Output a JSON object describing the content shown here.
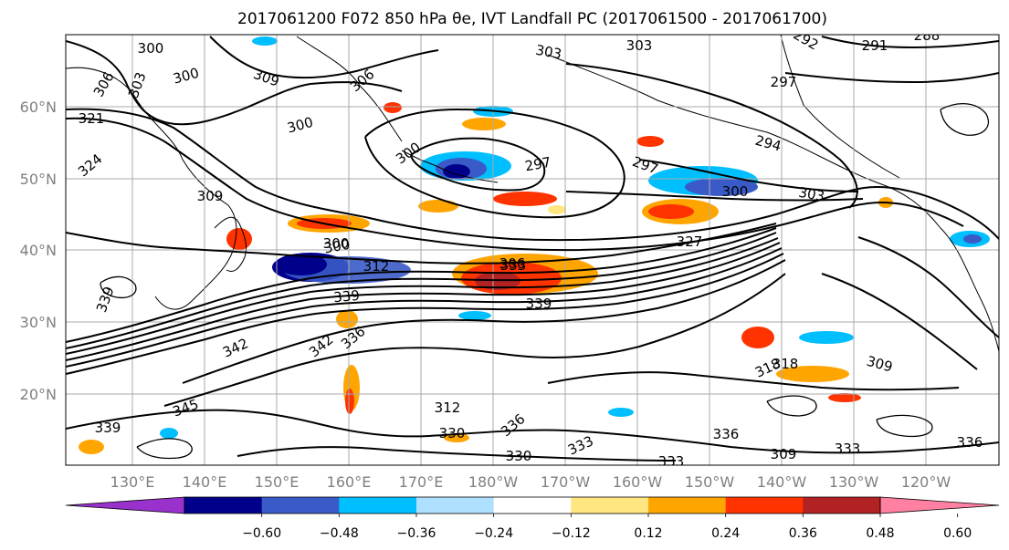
{
  "title": "2017061200 F072 850 hPa θe, IVT Landfall PC (2017061500 - 2017061700)",
  "lat_labels": [
    "60°N",
    "50°N",
    "40°N",
    "30°N",
    "20°N"
  ],
  "lon_labels": [
    "130°E",
    "140°E",
    "150°E",
    "160°E",
    "170°E",
    "180°W",
    "170°W",
    "160°W",
    "150°W",
    "140°W",
    "130°W",
    "120°W"
  ],
  "colorbar": {
    "colors": [
      "#9932cc",
      "#00008b",
      "#3a5bc7",
      "#00bfff",
      "#b0e0ff",
      "#ffffff",
      "#ffe680",
      "#ffa500",
      "#ff3300",
      "#b22222",
      "#ff80a0"
    ],
    "tick_labels": [
      "−0.60",
      "−0.48",
      "−0.36",
      "−0.24",
      "−0.12",
      "0.12",
      "0.24",
      "0.36",
      "0.48",
      "0.60"
    ]
  },
  "contour_labels": [
    "300",
    "306",
    "303",
    "300",
    "309",
    "306",
    "300",
    "303",
    "303",
    "292",
    "291",
    "288",
    "297",
    "324",
    "321",
    "300",
    "300",
    "297",
    "297",
    "294",
    "300",
    "303",
    "309",
    "339",
    "342",
    "345",
    "339",
    "336",
    "330",
    "336",
    "333",
    "339",
    "330",
    "318",
    "309",
    "312",
    "333",
    "306",
    "300",
    "312",
    "336",
    "327",
    "342",
    "318",
    "309",
    "336",
    "339",
    "333",
    "333"
  ]
}
